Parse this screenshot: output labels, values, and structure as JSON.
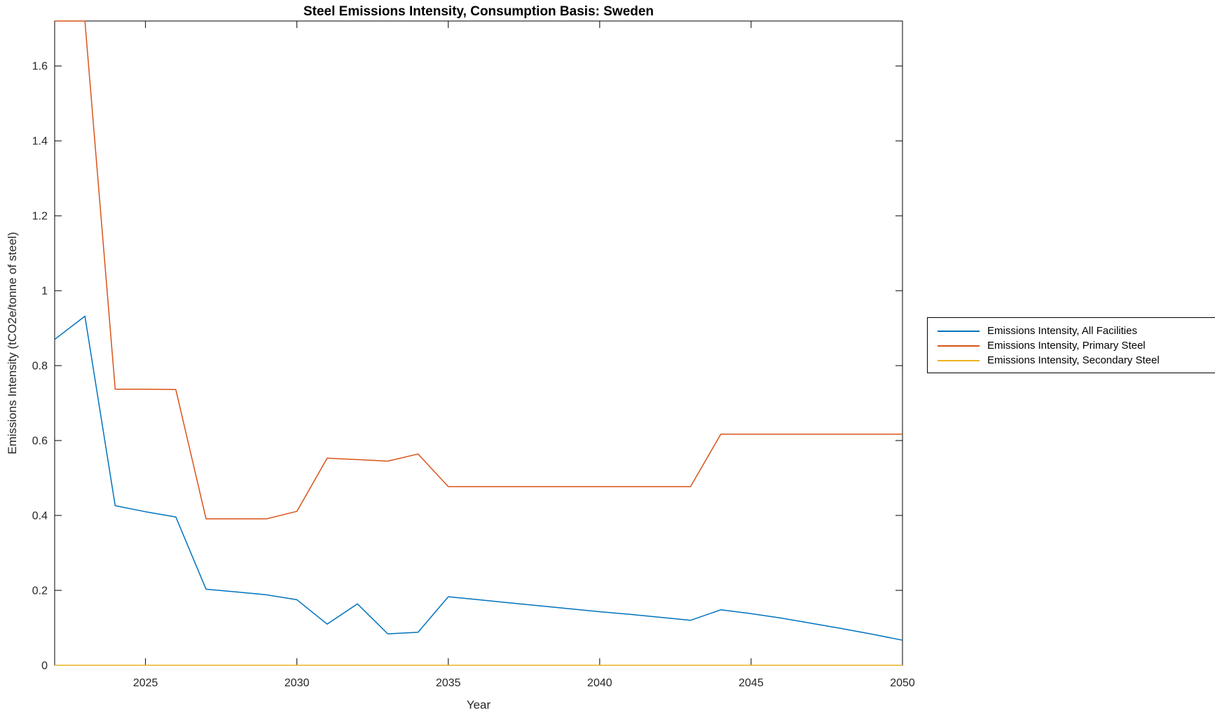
{
  "figure": {
    "background": "#ffffff",
    "axis_color": "#000000",
    "tick_label_color": "#262626"
  },
  "chart_data": {
    "type": "line",
    "title": "Steel Emissions Intensity, Consumption Basis: Sweden",
    "xlabel": "Year",
    "ylabel": "Emissions Intensity (tCO2e/tonne of steel)",
    "xlim": [
      2022,
      2050
    ],
    "ylim": [
      0,
      1.72
    ],
    "xticks": [
      2025,
      2030,
      2035,
      2040,
      2045,
      2050
    ],
    "yticks": [
      0,
      0.2,
      0.4,
      0.6,
      0.8,
      1,
      1.2,
      1.4,
      1.6
    ],
    "grid": false,
    "legend_position": "outside-right",
    "x": [
      2022,
      2023,
      2024,
      2025,
      2026,
      2027,
      2028,
      2029,
      2030,
      2031,
      2032,
      2033,
      2034,
      2035,
      2036,
      2037,
      2038,
      2039,
      2040,
      2041,
      2042,
      2043,
      2044,
      2045,
      2046,
      2047,
      2048,
      2049,
      2050
    ],
    "series": [
      {
        "name": "Emissions Intensity, All Facilities",
        "color": "#0072BD",
        "values": [
          0.87,
          0.932,
          0.426,
          0.41,
          0.396,
          0.203,
          0.196,
          0.188,
          0.175,
          0.11,
          0.164,
          0.084,
          0.088,
          0.183,
          0.175,
          0.167,
          0.159,
          0.151,
          0.143,
          0.136,
          0.128,
          0.12,
          0.148,
          0.138,
          0.126,
          0.112,
          0.098,
          0.083,
          0.067
        ]
      },
      {
        "name": "Emissions Intensity, Primary Steel",
        "color": "#D95319",
        "values": [
          1.72,
          1.72,
          0.737,
          0.737,
          0.736,
          0.391,
          0.391,
          0.391,
          0.411,
          0.553,
          0.549,
          0.545,
          0.564,
          0.477,
          0.477,
          0.477,
          0.477,
          0.477,
          0.477,
          0.477,
          0.477,
          0.477,
          0.617,
          0.617,
          0.617,
          0.617,
          0.617,
          0.617,
          0.617
        ]
      },
      {
        "name": "Emissions Intensity, Secondary Steel",
        "color": "#EDB120",
        "values": [
          0,
          0,
          0,
          0,
          0,
          0,
          0,
          0,
          0,
          0,
          0,
          0,
          0,
          0,
          0,
          0,
          0,
          0,
          0,
          0,
          0,
          0,
          0,
          0,
          0,
          0,
          0,
          0,
          0
        ]
      }
    ]
  }
}
